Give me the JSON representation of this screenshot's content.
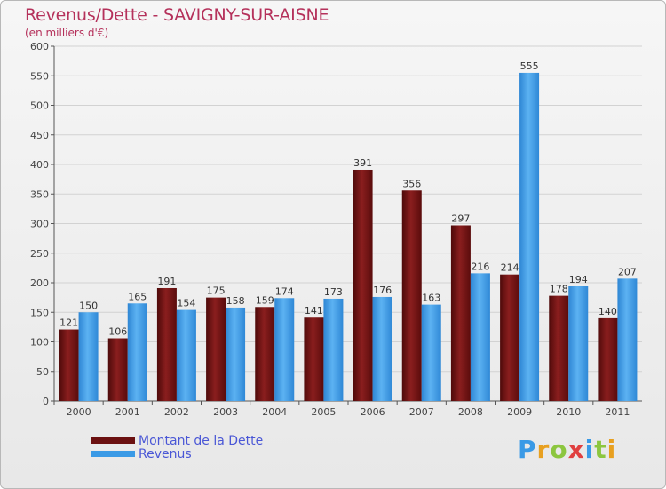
{
  "header": {
    "title": "Revenus/Dette - SAVIGNY-SUR-AISNE",
    "subtitle": "(en milliers d'€)"
  },
  "colors": {
    "dette": "#7a1515",
    "revenus": "#3a9ae6",
    "title": "#b5315b",
    "legend_text": "#4a57d6"
  },
  "legend": {
    "items": [
      {
        "label": "Montant de la Dette",
        "color": "#6b1010"
      },
      {
        "label": "Revenus",
        "color": "#3a9ae6"
      }
    ]
  },
  "logo": {
    "text": "Proxiti",
    "icon": "proxiti-logo"
  },
  "chart_data": {
    "type": "bar",
    "categories": [
      "2000",
      "2001",
      "2002",
      "2003",
      "2004",
      "2005",
      "2006",
      "2007",
      "2008",
      "2009",
      "2010",
      "2011"
    ],
    "series": [
      {
        "name": "Montant de la Dette",
        "values": [
          121,
          106,
          191,
          175,
          159,
          141,
          391,
          356,
          297,
          214,
          178,
          140
        ]
      },
      {
        "name": "Revenus",
        "values": [
          150,
          165,
          154,
          158,
          174,
          173,
          176,
          163,
          216,
          555,
          194,
          207
        ]
      }
    ],
    "ylim": [
      0,
      600
    ],
    "yticks": [
      0,
      50,
      100,
      150,
      200,
      250,
      300,
      350,
      400,
      450,
      500,
      550,
      600
    ],
    "grid": true,
    "legend_position": "bottom-left"
  }
}
